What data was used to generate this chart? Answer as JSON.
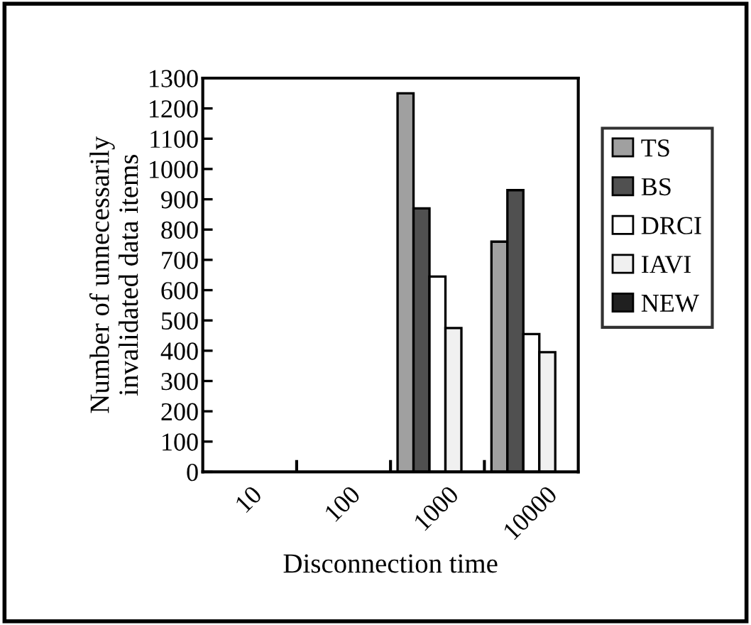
{
  "chart_data": {
    "type": "bar",
    "xlabel": "Disconnection time",
    "ylabel": "Number of unnecessarily\ninvalidated data items",
    "categories": [
      "10",
      "100",
      "1000",
      "10000"
    ],
    "series": [
      {
        "name": "TS",
        "color": "#a0a0a0",
        "values": [
          null,
          null,
          1250,
          760
        ]
      },
      {
        "name": "BS",
        "color": "#505050",
        "values": [
          null,
          null,
          870,
          930
        ]
      },
      {
        "name": "DRCI",
        "color": "#ffffff",
        "values": [
          null,
          null,
          645,
          455
        ]
      },
      {
        "name": "IAVI",
        "color": "#f0f0f0",
        "values": [
          null,
          null,
          475,
          395
        ]
      },
      {
        "name": "NEW",
        "color": "#202020",
        "values": [
          null,
          null,
          null,
          null
        ]
      }
    ],
    "ylim": [
      0,
      1300
    ],
    "yticks": [
      0,
      100,
      200,
      300,
      400,
      500,
      600,
      700,
      800,
      900,
      1000,
      1100,
      1200,
      1300
    ],
    "grid": false,
    "legend": "right"
  }
}
